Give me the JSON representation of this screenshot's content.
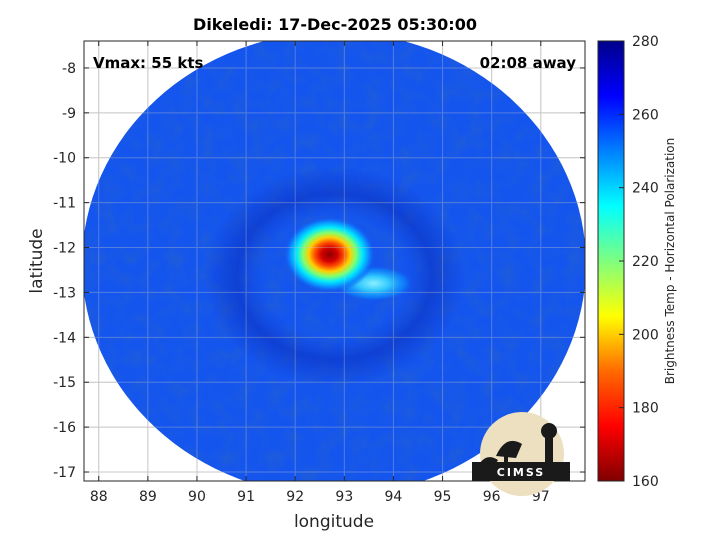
{
  "chart_data": {
    "type": "heatmap",
    "title": "Dikeledi: 17-Dec-2025 05:30:00",
    "xlabel": "longitude",
    "ylabel": "latitude",
    "xlim": [
      87.7,
      97.9
    ],
    "ylim": [
      -17.2,
      -7.4
    ],
    "xticks": [
      "88",
      "89",
      "90",
      "91",
      "92",
      "93",
      "94",
      "95",
      "96",
      "97"
    ],
    "yticks": [
      "-8",
      "-9",
      "-10",
      "-11",
      "-12",
      "-13",
      "-14",
      "-15",
      "-16",
      "-17"
    ],
    "grid": true,
    "annotations": {
      "vmax": "Vmax: 55 kts",
      "time_away": "02:08 away"
    },
    "colorbar": {
      "label": "Brightness Temp - Horizontal Polarization",
      "min": 160,
      "max": 280,
      "ticks": [
        "280",
        "260",
        "240",
        "220",
        "200",
        "180",
        "160"
      ],
      "colormap": "jet"
    },
    "features": {
      "swath_edge": "circular",
      "storm_center": {
        "lon": 92.9,
        "lat": -12.2
      },
      "warm_core_min_temp": 165,
      "ambient_temp": 262,
      "rain_band_temp": 238,
      "rain_band_center": {
        "lon": 93.6,
        "lat": -12.8
      }
    },
    "logo_text": "CIMSS"
  }
}
